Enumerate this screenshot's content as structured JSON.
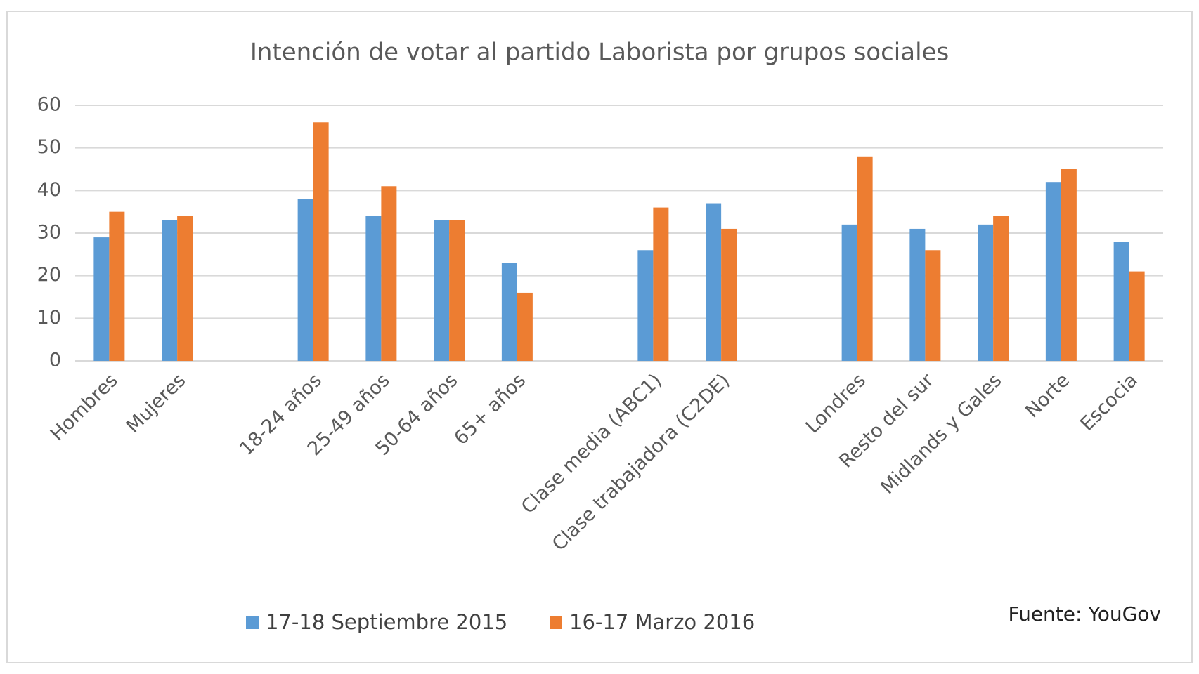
{
  "chart_data": {
    "type": "bar",
    "title": "Intención de votar al partido Laborista por grupos sociales",
    "categories": [
      "Hombres",
      "Mujeres",
      null,
      "18-24 años",
      "25-49 años",
      "50-64 años",
      "65+ años",
      null,
      "Clase media (ABC1)",
      "Clase trabajadora (C2DE)",
      null,
      "Londres",
      "Resto del sur",
      "Midlands y Gales",
      "Norte",
      "Escocia"
    ],
    "series": [
      {
        "name": "17-18 Septiembre 2015",
        "color": "#5b9bd5",
        "values": [
          29,
          33,
          null,
          38,
          34,
          33,
          23,
          null,
          26,
          37,
          null,
          32,
          31,
          32,
          42,
          28
        ]
      },
      {
        "name": "16-17 Marzo 2016",
        "color": "#ed7d31",
        "values": [
          35,
          34,
          null,
          56,
          41,
          33,
          16,
          null,
          36,
          31,
          null,
          48,
          26,
          34,
          45,
          21
        ]
      }
    ],
    "ylim": [
      0,
      60
    ],
    "yticks": [
      0,
      10,
      20,
      30,
      40,
      50,
      60
    ],
    "grid": true,
    "legend": "bottom",
    "annotation": "Fuente: YouGov"
  }
}
